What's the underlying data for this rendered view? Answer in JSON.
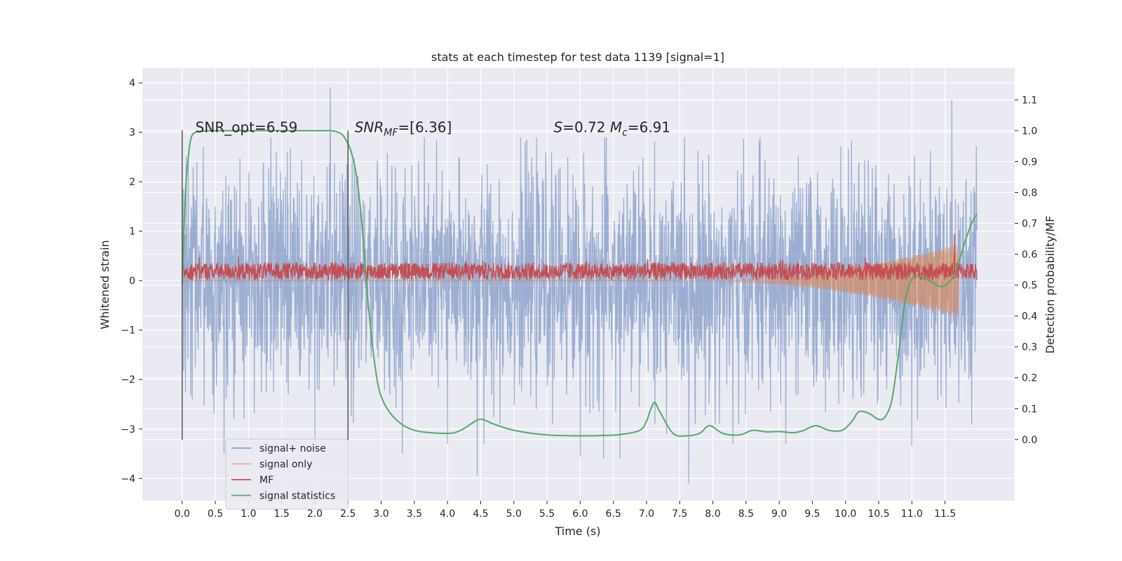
{
  "chart_data": {
    "type": "line",
    "title": "stats at each timestep for test data 1139 [signal=1]",
    "xlabel": "Time (s)",
    "ylabel": "Whitened strain",
    "y2label": "Detection probability/MF",
    "xlim": [
      -0.6,
      12.55
    ],
    "ylim": [
      -4.45,
      4.3
    ],
    "y2lim": [
      -0.198,
      1.203
    ],
    "x_ticks": [
      0.0,
      0.5,
      1.0,
      1.5,
      2.0,
      2.5,
      3.0,
      3.5,
      4.0,
      4.5,
      5.0,
      5.5,
      6.0,
      6.5,
      7.0,
      7.5,
      8.0,
      8.5,
      9.0,
      9.5,
      10.0,
      10.5,
      11.0,
      11.5
    ],
    "x_tick_labels": [
      "0.0",
      "0.5",
      "1.0",
      "1.5",
      "2.0",
      "2.5",
      "3.0",
      "3.5",
      "4.0",
      "4.5",
      "5.0",
      "5.5",
      "6.0",
      "6.5",
      "7.0",
      "7.5",
      "8.0",
      "8.5",
      "9.0",
      "9.5",
      "10.0",
      "10.5",
      "11.0",
      "11.5"
    ],
    "y_ticks": [
      -4,
      -3,
      -2,
      -1,
      0,
      1,
      2,
      3,
      4
    ],
    "y_tick_labels": [
      "−4",
      "−3",
      "−2",
      "−1",
      "0",
      "1",
      "2",
      "3",
      "4"
    ],
    "y2_ticks": [
      0.0,
      0.1,
      0.2,
      0.3,
      0.4,
      0.5,
      0.6,
      0.7,
      0.8,
      0.9,
      1.0,
      1.1
    ],
    "y2_tick_labels": [
      "0.0",
      "0.1",
      "0.2",
      "0.3",
      "0.4",
      "0.5",
      "0.6",
      "0.7",
      "0.8",
      "0.9",
      "1.0",
      "1.1"
    ],
    "grid": true,
    "legend_position": "lower-left",
    "annotations": [
      {
        "text": "SNR_opt=6.59",
        "x": 0.2,
        "y": 3.1
      },
      {
        "text": "SNR",
        "sub": "MF",
        "tail": "=[6.36]",
        "italic": true,
        "x": 2.6,
        "y": 3.1
      },
      {
        "text": "S",
        "tail": "=0.72   ",
        "text2": "M",
        "sub2": "c",
        "tail2": "=6.91",
        "italic": true,
        "x": 5.6,
        "y": 3.1
      }
    ],
    "vlines": [
      {
        "x": 0.0,
        "y": [
          -3.22,
          3.04
        ],
        "color": "#555555"
      },
      {
        "x": 2.5,
        "y": [
          -3.22,
          3.04
        ],
        "color": "#555555"
      }
    ],
    "series": [
      {
        "name": "signal+ noise",
        "color": "#4c72b0",
        "axis": "left",
        "kind": "noise",
        "x_range": [
          0.0,
          11.98
        ],
        "amplitude": 1.1,
        "extremes": [
          [
            0.15,
            -2.4
          ],
          [
            0.22,
            2.4
          ],
          [
            0.4,
            1.45
          ],
          [
            0.63,
            -3.5
          ],
          [
            0.78,
            -2.8
          ],
          [
            1.6,
            -2.3
          ],
          [
            2.0,
            -3.3
          ],
          [
            2.23,
            3.9
          ],
          [
            2.55,
            -2.75
          ],
          [
            3.32,
            -3.5
          ],
          [
            4.0,
            -3.3
          ],
          [
            4.45,
            -3.95
          ],
          [
            4.55,
            -3.3
          ],
          [
            6.0,
            -3.55
          ],
          [
            6.35,
            -3.6
          ],
          [
            6.6,
            -3.6
          ],
          [
            7.3,
            -3.1
          ],
          [
            7.64,
            -4.1
          ],
          [
            8.3,
            -3.3
          ],
          [
            9.1,
            -3.3
          ],
          [
            11.0,
            -3.35
          ],
          [
            11.6,
            3.65
          ]
        ]
      },
      {
        "name": "signal only",
        "color": "#dd8452",
        "axis": "left",
        "kind": "chirp",
        "x_range": [
          0.0,
          11.7
        ],
        "start": 7.5,
        "env_start": 0.0,
        "env_end": 0.75
      },
      {
        "name": "MF",
        "color": "#c44e52",
        "axis": "right",
        "kind": "band",
        "x_range": [
          0.0,
          11.98
        ],
        "center": 0.545,
        "spread": 0.028,
        "spikes": [
          [
            11.64,
            0.665
          ]
        ]
      },
      {
        "name": "signal statistics",
        "color": "#55a868",
        "axis": "right",
        "kind": "line",
        "x": [
          0.0,
          0.05,
          0.1,
          0.14,
          0.2,
          0.3,
          0.5,
          1.0,
          1.5,
          2.0,
          2.2,
          2.3,
          2.4,
          2.47,
          2.55,
          2.63,
          2.7,
          2.8,
          2.9,
          3.0,
          3.2,
          3.5,
          4.0,
          4.2,
          4.35,
          4.5,
          4.7,
          5.0,
          5.5,
          6.0,
          6.3,
          6.6,
          6.9,
          7.0,
          7.05,
          7.12,
          7.2,
          7.4,
          7.6,
          7.8,
          7.95,
          8.15,
          8.4,
          8.6,
          8.8,
          9.0,
          9.2,
          9.35,
          9.55,
          9.75,
          9.95,
          10.1,
          10.2,
          10.35,
          10.5,
          10.6,
          10.7,
          10.8,
          10.9,
          11.0,
          11.1,
          11.3,
          11.45,
          11.6,
          11.7,
          11.8,
          11.9,
          11.98
        ],
        "y": [
          0.5,
          0.8,
          0.93,
          0.98,
          0.995,
          0.998,
          1.0,
          1.0,
          1.0,
          1.0,
          1.0,
          0.998,
          0.99,
          0.97,
          0.93,
          0.85,
          0.72,
          0.45,
          0.25,
          0.14,
          0.07,
          0.03,
          0.02,
          0.03,
          0.05,
          0.066,
          0.05,
          0.03,
          0.015,
          0.012,
          0.013,
          0.016,
          0.03,
          0.06,
          0.09,
          0.12,
          0.09,
          0.02,
          0.012,
          0.02,
          0.045,
          0.02,
          0.015,
          0.03,
          0.025,
          0.026,
          0.022,
          0.028,
          0.045,
          0.03,
          0.03,
          0.06,
          0.09,
          0.085,
          0.065,
          0.075,
          0.13,
          0.28,
          0.45,
          0.52,
          0.53,
          0.51,
          0.495,
          0.52,
          0.57,
          0.64,
          0.7,
          0.73
        ]
      }
    ]
  }
}
